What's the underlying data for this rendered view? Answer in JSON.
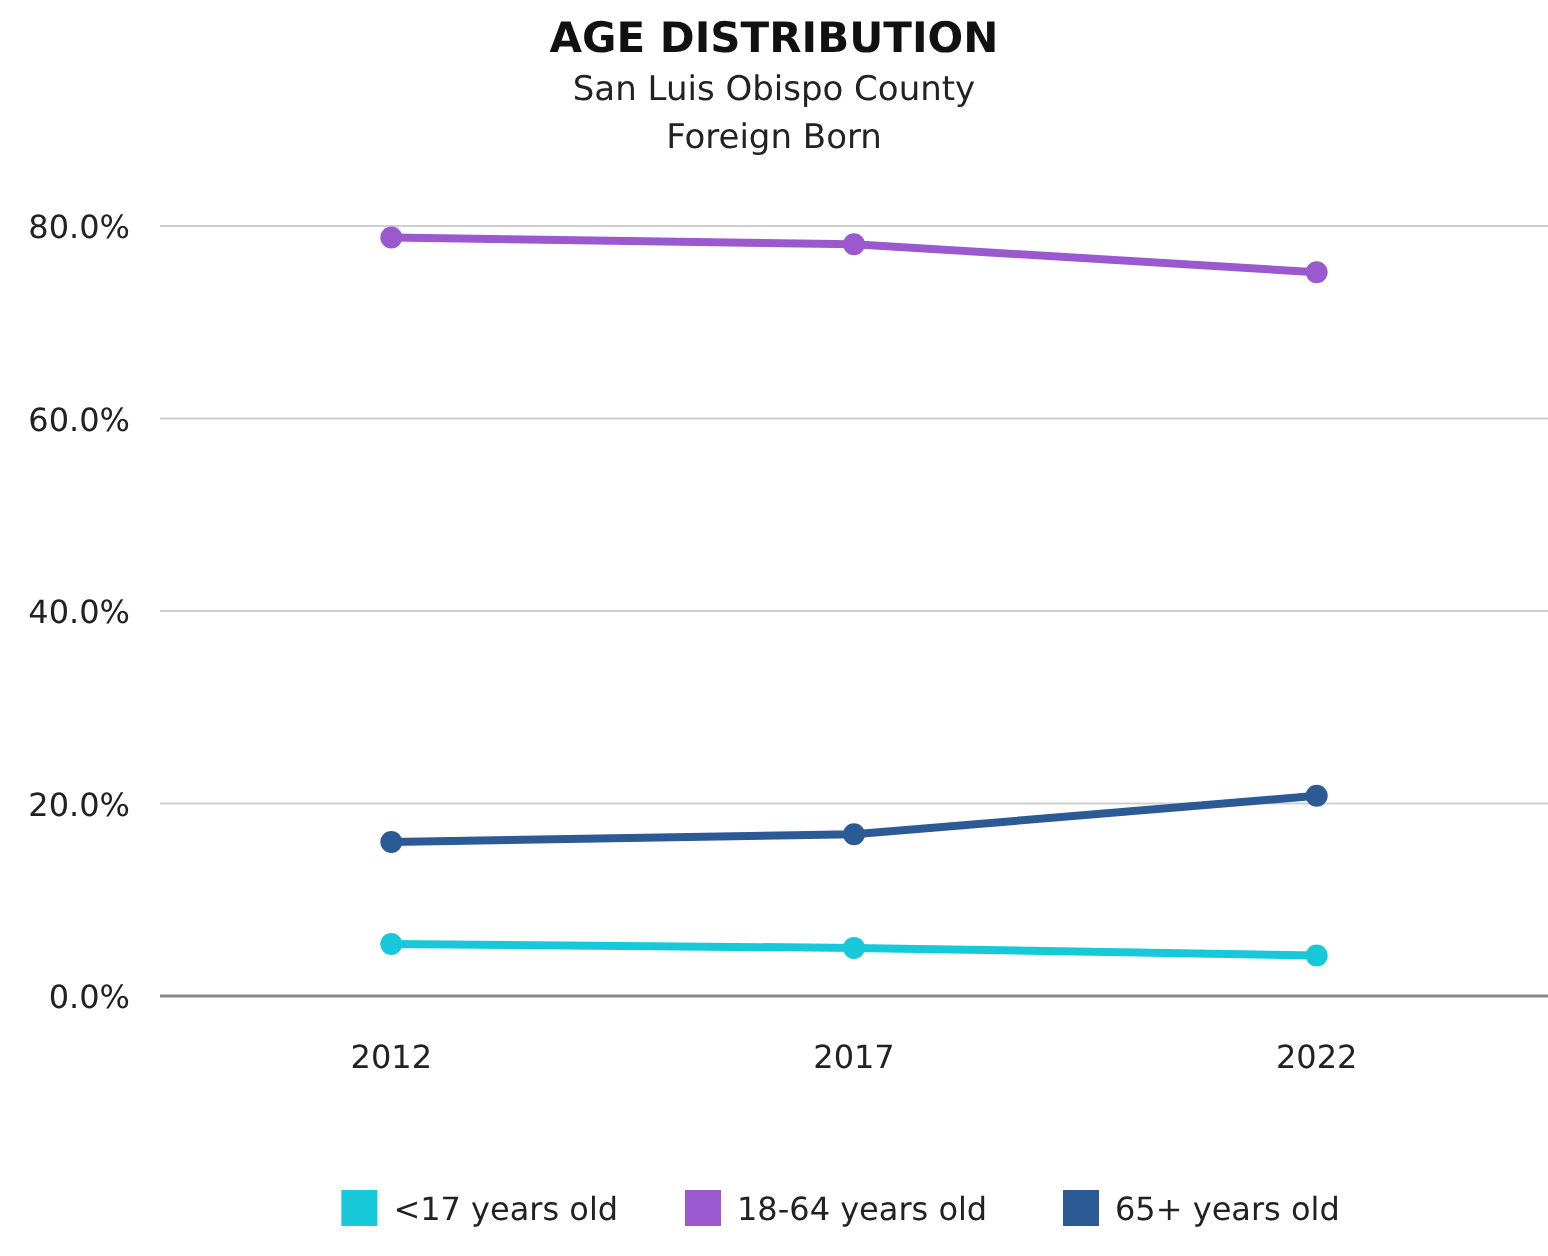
{
  "chart_data": {
    "type": "line",
    "title": "AGE DISTRIBUTION",
    "subtitle": "San Luis Obispo County\nForeign Born",
    "categories": [
      "2012",
      "2017",
      "2022"
    ],
    "series": [
      {
        "name": "<17 years old",
        "color": "#17c9d8",
        "values": [
          5.4,
          5.0,
          4.2
        ]
      },
      {
        "name": "18-64 years old",
        "color": "#9b59d0",
        "values": [
          78.8,
          78.1,
          75.2
        ]
      },
      {
        "name": "65+ years old",
        "color": "#2c5a94",
        "values": [
          16.0,
          16.8,
          20.8
        ]
      }
    ],
    "ylim": [
      0,
      80
    ],
    "yticks": [
      {
        "value": 0,
        "label": "0.0%"
      },
      {
        "value": 20,
        "label": "20.0%"
      },
      {
        "value": 40,
        "label": "40.0%"
      },
      {
        "value": 60,
        "label": "60.0%"
      },
      {
        "value": 80,
        "label": "80.0%"
      }
    ],
    "grid": "y",
    "legend": "bottom",
    "marker": "circle",
    "line_style": "solid"
  }
}
